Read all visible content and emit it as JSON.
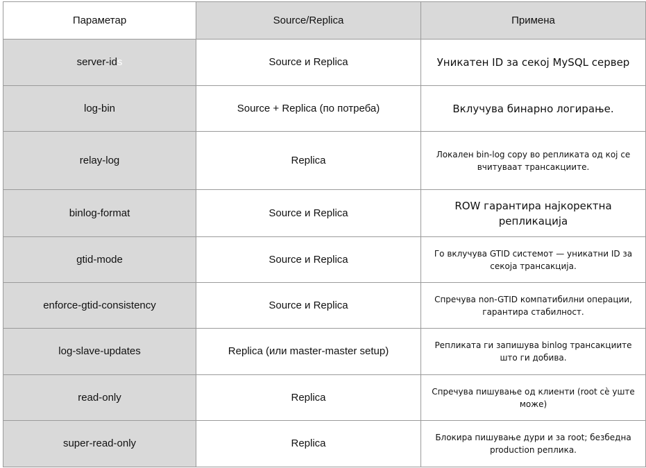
{
  "header": {
    "param": "Параметар",
    "role": "Source/Replica",
    "usage": "Примена"
  },
  "rows": [
    {
      "param": "server-id",
      "param_ghost": "s",
      "role": "Source и Replica",
      "usage": "Уникатен ID за секој MySQL сервер",
      "usage_size": "large"
    },
    {
      "param": "log-bin",
      "role": "Source + Replica (по потреба)",
      "usage": "Вклучува бинарно логирање.",
      "usage_size": "large"
    },
    {
      "param": "relay-log",
      "role": "Replica",
      "usage": "Локален bin-log copy во репликата од кој се вчитуваат трансакциите.",
      "usage_size": "small"
    },
    {
      "param": "binlog-format",
      "role": "Source и Replica",
      "usage": "ROW гарантира најкоректна репликација",
      "usage_size": "large"
    },
    {
      "param": "gtid-mode",
      "role": "Source и Replica",
      "usage": "Го вклучува GTID системот — уникатни ID за секоја трансакција.",
      "usage_size": "small"
    },
    {
      "param": "enforce-gtid-consistency",
      "role": "Source и Replica",
      "usage": "Спречува non-GTID компатибилни операции, гарантира стабилност.",
      "usage_size": "small"
    },
    {
      "param": "log-slave-updates",
      "role": "Replica (или master-master setup)",
      "usage": "Репликата ги запишува binlog трансакциите што ги добива.",
      "usage_size": "small"
    },
    {
      "param": "read-only",
      "role": "Replica",
      "usage": "Спречува пишување од клиенти (root сè уште може)",
      "usage_size": "small"
    },
    {
      "param": "super-read-only",
      "role": "Replica",
      "usage": "Блокира пишување дури и за root; безбедна production реплика.",
      "usage_size": "small"
    }
  ],
  "colors": {
    "header_shade": "#d9d9d9",
    "param_shade": "#d9d9d9",
    "border": "#9a9a9a"
  }
}
